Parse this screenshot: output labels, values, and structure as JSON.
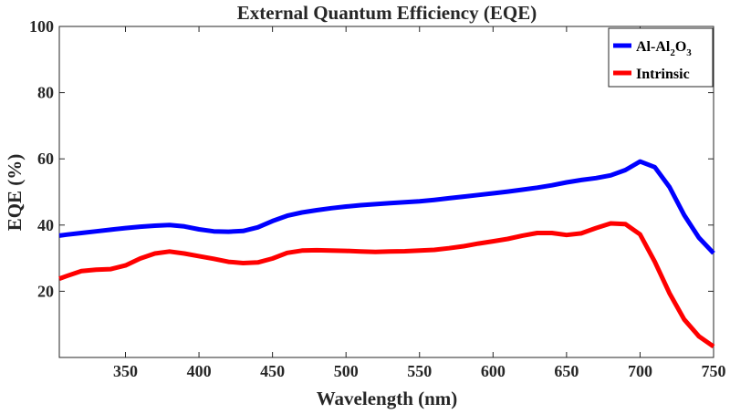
{
  "chart_data": {
    "type": "line",
    "title": "External Quantum Efficiency (EQE)",
    "xlabel": "Wavelength (nm)",
    "ylabel": "EQE (%)",
    "xlim": [
      305,
      750
    ],
    "ylim": [
      0,
      100
    ],
    "xticks": [
      350,
      400,
      450,
      500,
      550,
      600,
      650,
      700,
      750
    ],
    "yticks": [
      20,
      40,
      60,
      80,
      100
    ],
    "grid": false,
    "legend_position": "top-right",
    "x": [
      305,
      310,
      320,
      330,
      340,
      350,
      360,
      370,
      380,
      390,
      400,
      410,
      420,
      430,
      440,
      450,
      460,
      470,
      480,
      490,
      500,
      510,
      520,
      530,
      540,
      550,
      560,
      570,
      580,
      590,
      600,
      610,
      620,
      630,
      640,
      650,
      660,
      670,
      680,
      690,
      700,
      710,
      720,
      730,
      740,
      750
    ],
    "series": [
      {
        "name": "Al-Al2O3",
        "legend_main": "Al-Al",
        "legend_sub1": "2",
        "legend_mid": "O",
        "legend_sub2": "3",
        "color": "#0000FF",
        "values": [
          36.8,
          37.1,
          37.6,
          38.1,
          38.6,
          39.1,
          39.5,
          39.8,
          40.0,
          39.6,
          38.7,
          38.1,
          38.0,
          38.2,
          39.3,
          41.2,
          42.8,
          43.8,
          44.5,
          45.1,
          45.6,
          46.0,
          46.3,
          46.6,
          46.9,
          47.2,
          47.6,
          48.1,
          48.6,
          49.1,
          49.6,
          50.1,
          50.7,
          51.3,
          52.0,
          52.9,
          53.6,
          54.2,
          55.0,
          56.6,
          59.2,
          57.5,
          51.5,
          43.0,
          36.2,
          31.5
        ]
      },
      {
        "name": "Intrinsic",
        "color": "#FF0000",
        "values": [
          23.8,
          24.6,
          26.1,
          26.5,
          26.7,
          27.8,
          29.9,
          31.4,
          32.0,
          31.4,
          30.6,
          29.8,
          28.9,
          28.5,
          28.7,
          29.9,
          31.6,
          32.3,
          32.4,
          32.3,
          32.2,
          32.0,
          31.9,
          32.0,
          32.1,
          32.3,
          32.5,
          33.0,
          33.6,
          34.4,
          35.1,
          35.8,
          36.8,
          37.6,
          37.6,
          37.0,
          37.5,
          39.1,
          40.5,
          40.3,
          37.2,
          28.9,
          19.4,
          11.5,
          6.4,
          3.3
        ]
      }
    ]
  }
}
